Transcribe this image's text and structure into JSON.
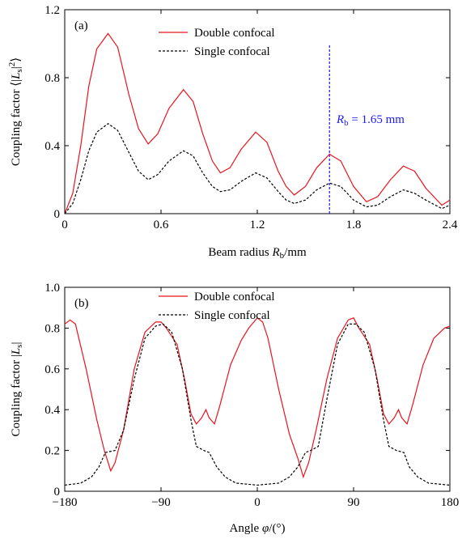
{
  "chart_data": [
    {
      "type": "line",
      "panel": "(a)",
      "xlabel": [
        "Beam radius ",
        "R",
        "b",
        "/mm"
      ],
      "ylabel": [
        "Coupling factor ⟨|",
        "L",
        "s",
        "|",
        "2",
        "⟩"
      ],
      "xlim": [
        0,
        2.4
      ],
      "xticks": [
        0,
        0.6,
        1.2,
        1.8,
        2.4
      ],
      "ylim": [
        0,
        1.2
      ],
      "yticks": [
        0,
        0.4,
        0.8,
        1.2
      ],
      "series": [
        {
          "name": "Double confocal",
          "color": "#e8141c",
          "dash": "none",
          "x": [
            0,
            0.05,
            0.1,
            0.15,
            0.2,
            0.27,
            0.33,
            0.4,
            0.46,
            0.52,
            0.58,
            0.65,
            0.74,
            0.8,
            0.86,
            0.92,
            0.97,
            1.03,
            1.1,
            1.19,
            1.26,
            1.33,
            1.38,
            1.43,
            1.5,
            1.57,
            1.65,
            1.72,
            1.8,
            1.88,
            1.95,
            2.03,
            2.11,
            2.18,
            2.25,
            2.35,
            2.4
          ],
          "values": [
            0,
            0.12,
            0.4,
            0.75,
            0.97,
            1.06,
            0.98,
            0.7,
            0.5,
            0.41,
            0.47,
            0.62,
            0.73,
            0.66,
            0.47,
            0.31,
            0.24,
            0.27,
            0.38,
            0.48,
            0.42,
            0.25,
            0.16,
            0.11,
            0.16,
            0.27,
            0.35,
            0.31,
            0.16,
            0.07,
            0.1,
            0.2,
            0.28,
            0.25,
            0.15,
            0.05,
            0.08
          ]
        },
        {
          "name": "Single confocal",
          "color": "#000000",
          "dash": "3,2",
          "x": [
            0,
            0.05,
            0.1,
            0.15,
            0.2,
            0.27,
            0.33,
            0.4,
            0.46,
            0.52,
            0.58,
            0.65,
            0.74,
            0.8,
            0.86,
            0.92,
            0.97,
            1.03,
            1.1,
            1.19,
            1.26,
            1.33,
            1.38,
            1.43,
            1.5,
            1.57,
            1.65,
            1.72,
            1.8,
            1.88,
            1.95,
            2.03,
            2.11,
            2.18,
            2.25,
            2.35,
            2.4
          ],
          "values": [
            0,
            0.06,
            0.2,
            0.37,
            0.48,
            0.53,
            0.49,
            0.36,
            0.25,
            0.2,
            0.23,
            0.31,
            0.37,
            0.34,
            0.24,
            0.16,
            0.13,
            0.14,
            0.19,
            0.24,
            0.21,
            0.13,
            0.08,
            0.06,
            0.08,
            0.14,
            0.18,
            0.16,
            0.08,
            0.04,
            0.05,
            0.1,
            0.14,
            0.12,
            0.08,
            0.03,
            0.05
          ]
        }
      ],
      "marker_line": {
        "x": 1.65,
        "y": [
          0,
          1.0
        ],
        "color": "#1a1aff"
      },
      "annotation": [
        "R",
        "b",
        " = 1.65 mm"
      ]
    },
    {
      "type": "line",
      "panel": "(b)",
      "xlabel": [
        "Angle ",
        "φ",
        "/(°)"
      ],
      "ylabel": [
        "Coupling factor |",
        "L",
        "s",
        "|"
      ],
      "xlim": [
        -180,
        180
      ],
      "xticks": [
        {
          "value": -180,
          "label": "−180"
        },
        {
          "value": -90,
          "label": "−90"
        },
        0,
        90,
        180
      ],
      "ylim": [
        0,
        1.0
      ],
      "yticks": [
        0,
        0.2,
        0.4,
        0.6,
        0.8,
        {
          "value": 1.0,
          "label": "1.0"
        }
      ],
      "series": [
        {
          "name": "Double confocal",
          "color": "#e8141c",
          "dash": "none",
          "x": [
            -180,
            -175,
            -170,
            -160,
            -150,
            -143,
            -137,
            -133,
            -125,
            -115,
            -105,
            -95,
            -90,
            -85,
            -75,
            -68,
            -62,
            -57,
            -52,
            -48,
            -45,
            -40,
            -35,
            -25,
            -15,
            -8,
            0,
            5,
            10,
            20,
            30,
            38,
            43,
            48,
            55,
            65,
            75,
            85,
            90,
            95,
            105,
            112,
            118,
            123,
            128,
            132,
            135,
            140,
            145,
            155,
            165,
            175,
            180
          ],
          "values": [
            0.82,
            0.84,
            0.82,
            0.6,
            0.35,
            0.2,
            0.1,
            0.14,
            0.3,
            0.6,
            0.78,
            0.83,
            0.83,
            0.8,
            0.72,
            0.55,
            0.38,
            0.33,
            0.36,
            0.4,
            0.36,
            0.33,
            0.42,
            0.62,
            0.74,
            0.8,
            0.85,
            0.83,
            0.75,
            0.5,
            0.28,
            0.16,
            0.07,
            0.14,
            0.3,
            0.55,
            0.75,
            0.84,
            0.85,
            0.8,
            0.72,
            0.55,
            0.38,
            0.33,
            0.36,
            0.4,
            0.36,
            0.33,
            0.42,
            0.62,
            0.75,
            0.8,
            0.81
          ]
        },
        {
          "name": "Single confocal",
          "color": "#000000",
          "dash": "3,2",
          "x": [
            -180,
            -165,
            -155,
            -148,
            -142,
            -133,
            -125,
            -115,
            -105,
            -95,
            -88,
            -80,
            -70,
            -62,
            -57,
            -50,
            -45,
            -38,
            -30,
            -20,
            0,
            20,
            30,
            38,
            45,
            50,
            57,
            65,
            75,
            85,
            92,
            100,
            110,
            118,
            123,
            130,
            137,
            142,
            150,
            160,
            180
          ],
          "values": [
            0.03,
            0.04,
            0.07,
            0.12,
            0.19,
            0.2,
            0.3,
            0.55,
            0.75,
            0.81,
            0.82,
            0.78,
            0.6,
            0.35,
            0.22,
            0.2,
            0.19,
            0.12,
            0.07,
            0.04,
            0.03,
            0.04,
            0.07,
            0.12,
            0.19,
            0.2,
            0.22,
            0.45,
            0.72,
            0.82,
            0.82,
            0.78,
            0.6,
            0.35,
            0.22,
            0.2,
            0.19,
            0.12,
            0.07,
            0.04,
            0.03
          ]
        }
      ]
    }
  ]
}
